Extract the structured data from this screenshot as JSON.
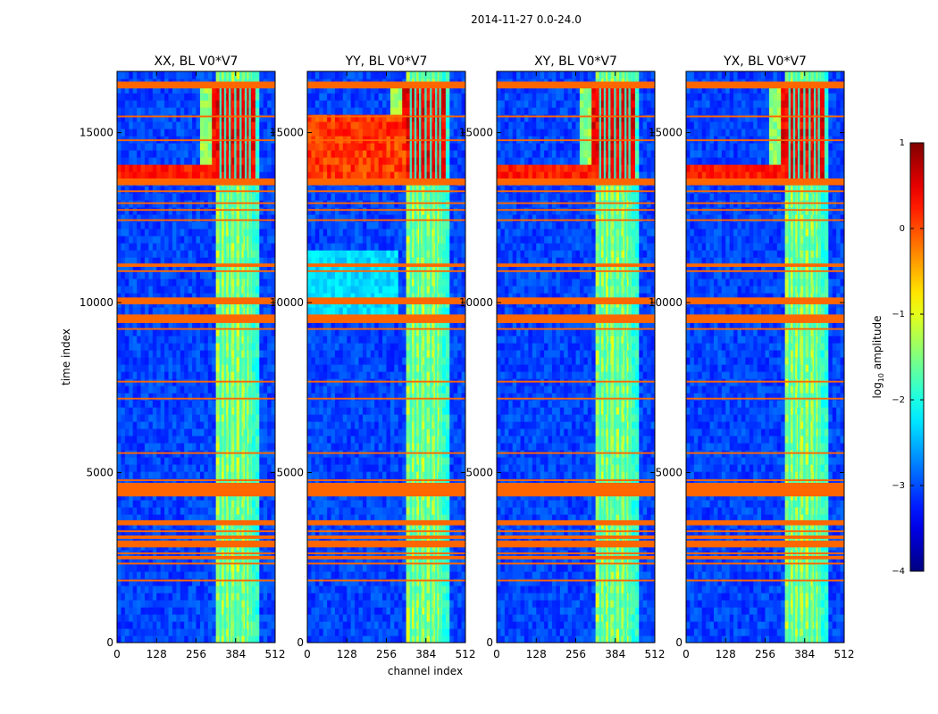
{
  "figure_title": "2014-11-27 0.0-24.0",
  "chart_data": {
    "type": "heatmap",
    "title": "2014-11-27 0.0-24.0",
    "xlabel": "channel index",
    "ylabel": "time index",
    "xlim": [
      0,
      512
    ],
    "ylim": [
      0,
      16800
    ],
    "x_ticks": [
      "0",
      "128",
      "256",
      "384",
      "512"
    ],
    "y_ticks": [
      "0",
      "5000",
      "10000",
      "15000"
    ],
    "x_tick_values": [
      0,
      128,
      256,
      384,
      512
    ],
    "y_tick_values": [
      0,
      5000,
      10000,
      15000
    ],
    "panels": [
      {
        "title": "XX, BL V0*V7",
        "pol": "XX"
      },
      {
        "title": "YY, BL V0*V7",
        "pol": "YY"
      },
      {
        "title": "XY, BL V0*V7",
        "pol": "XY"
      },
      {
        "title": "YX, BL V0*V7",
        "pol": "YX"
      }
    ],
    "colorbar": {
      "label": "log10 amplitude",
      "label_text": "log",
      "label_sub": "10",
      "label_rest": " amplitude",
      "range": [
        -4,
        1
      ],
      "ticks": [
        "1",
        "0",
        "−1",
        "−2",
        "−3",
        "−4"
      ],
      "tick_values": [
        1,
        0,
        -1,
        -2,
        -3,
        -4
      ],
      "colormap": "jet"
    },
    "flagged_time_ranges": [
      [
        16300,
        16500
      ],
      [
        15450,
        15500
      ],
      [
        14750,
        14800
      ],
      [
        13450,
        13650
      ],
      [
        13250,
        13300
      ],
      [
        12900,
        12950
      ],
      [
        12700,
        12750
      ],
      [
        12400,
        12450
      ],
      [
        11050,
        11150
      ],
      [
        10900,
        10950
      ],
      [
        9950,
        10150
      ],
      [
        9400,
        9650
      ],
      [
        9200,
        9250
      ],
      [
        7650,
        7700
      ],
      [
        7150,
        7200
      ],
      [
        5550,
        5600
      ],
      [
        4750,
        4800
      ],
      [
        4300,
        4700
      ],
      [
        3450,
        3600
      ],
      [
        3250,
        3300
      ],
      [
        3050,
        3150
      ],
      [
        2800,
        3000
      ],
      [
        2600,
        2650
      ],
      [
        2450,
        2550
      ],
      [
        2300,
        2350
      ],
      [
        1800,
        1850
      ]
    ],
    "bright_channel_band": [
      322,
      440
    ],
    "rfi_channels": [
      335,
      350,
      365,
      383,
      400,
      417,
      430
    ],
    "flag_color": "#ff6600"
  }
}
